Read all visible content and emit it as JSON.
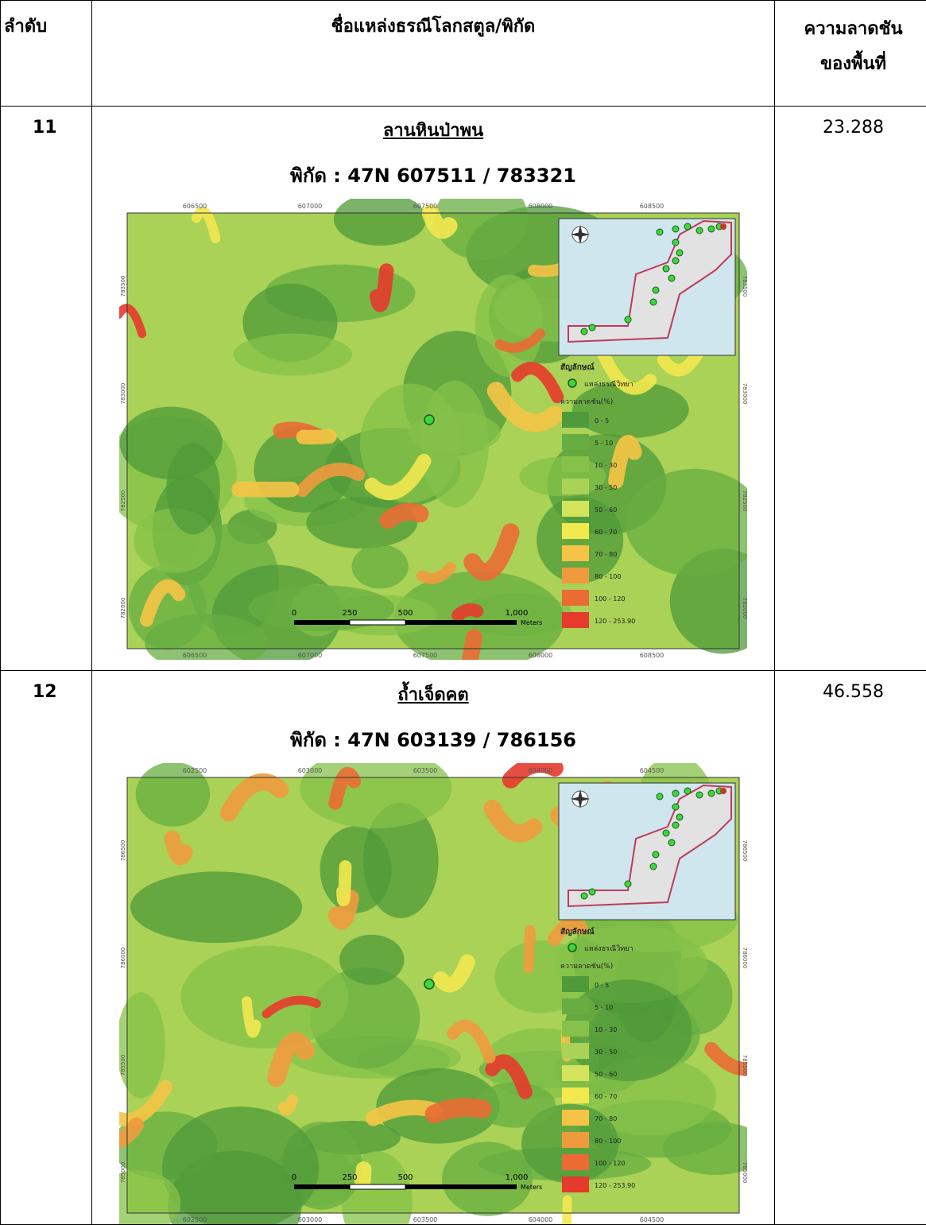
{
  "header": {
    "col_order": "ลำดับ",
    "col_name": "ชื่อแหล่งธรณีโลกสตูล/พิกัด",
    "col_slope_line1": "ความลาดชัน",
    "col_slope_line2": "ของพื้นที่"
  },
  "rows": [
    {
      "order": "11",
      "site_name": "ลานหินป่าพน",
      "coord": "พิกัด : 47N 607511 / 783321",
      "slope": "23.288",
      "map": {
        "top_ticks": [
          "606500",
          "607000",
          "607500",
          "608000",
          "608500"
        ],
        "bottom_ticks": [
          "606500",
          "607000",
          "607500",
          "608000",
          "608500"
        ],
        "left_ticks": [
          "783500",
          "783000",
          "782500",
          "782000"
        ],
        "right_ticks": [
          "783500",
          "783000",
          "782500",
          "782000"
        ],
        "scale_labels": [
          "0",
          "250",
          "500",
          "1,000"
        ],
        "scale_unit": "Meters"
      }
    },
    {
      "order": "12",
      "site_name": "ถ้ำเจ็ดคต",
      "coord": "พิกัด : 47N 603139 / 786156",
      "slope": "46.558",
      "map": {
        "top_ticks": [
          "602500",
          "603000",
          "603500",
          "604000",
          "604500"
        ],
        "bottom_ticks": [
          "602500",
          "603000",
          "603500",
          "604000",
          "604500"
        ],
        "left_ticks": [
          "786500",
          "786000",
          "785500",
          "785000"
        ],
        "right_ticks": [
          "786500",
          "786000",
          "785500",
          "785000"
        ],
        "scale_labels": [
          "0",
          "250",
          "500",
          "1,000"
        ],
        "scale_unit": "Meters"
      }
    }
  ],
  "legend": {
    "title": "สัญลักษณ์",
    "point_label": "แหล่งธรณีวิทยา",
    "slope_title": "ความลาดชัน(%)",
    "classes": [
      {
        "label": "0 - 5",
        "color": "#4f9a3a"
      },
      {
        "label": "5 - 10",
        "color": "#67ad41"
      },
      {
        "label": "10 - 30",
        "color": "#86c14a"
      },
      {
        "label": "30 - 50",
        "color": "#a9d256"
      },
      {
        "label": "50 - 60",
        "color": "#d3e45c"
      },
      {
        "label": "60 - 70",
        "color": "#f2e84f"
      },
      {
        "label": "70 - 80",
        "color": "#f5c446"
      },
      {
        "label": "80 - 100",
        "color": "#f09a3e"
      },
      {
        "label": "100 - 120",
        "color": "#ea6b34"
      },
      {
        "label": "120 - 253.90",
        "color": "#e53a2c"
      }
    ]
  }
}
